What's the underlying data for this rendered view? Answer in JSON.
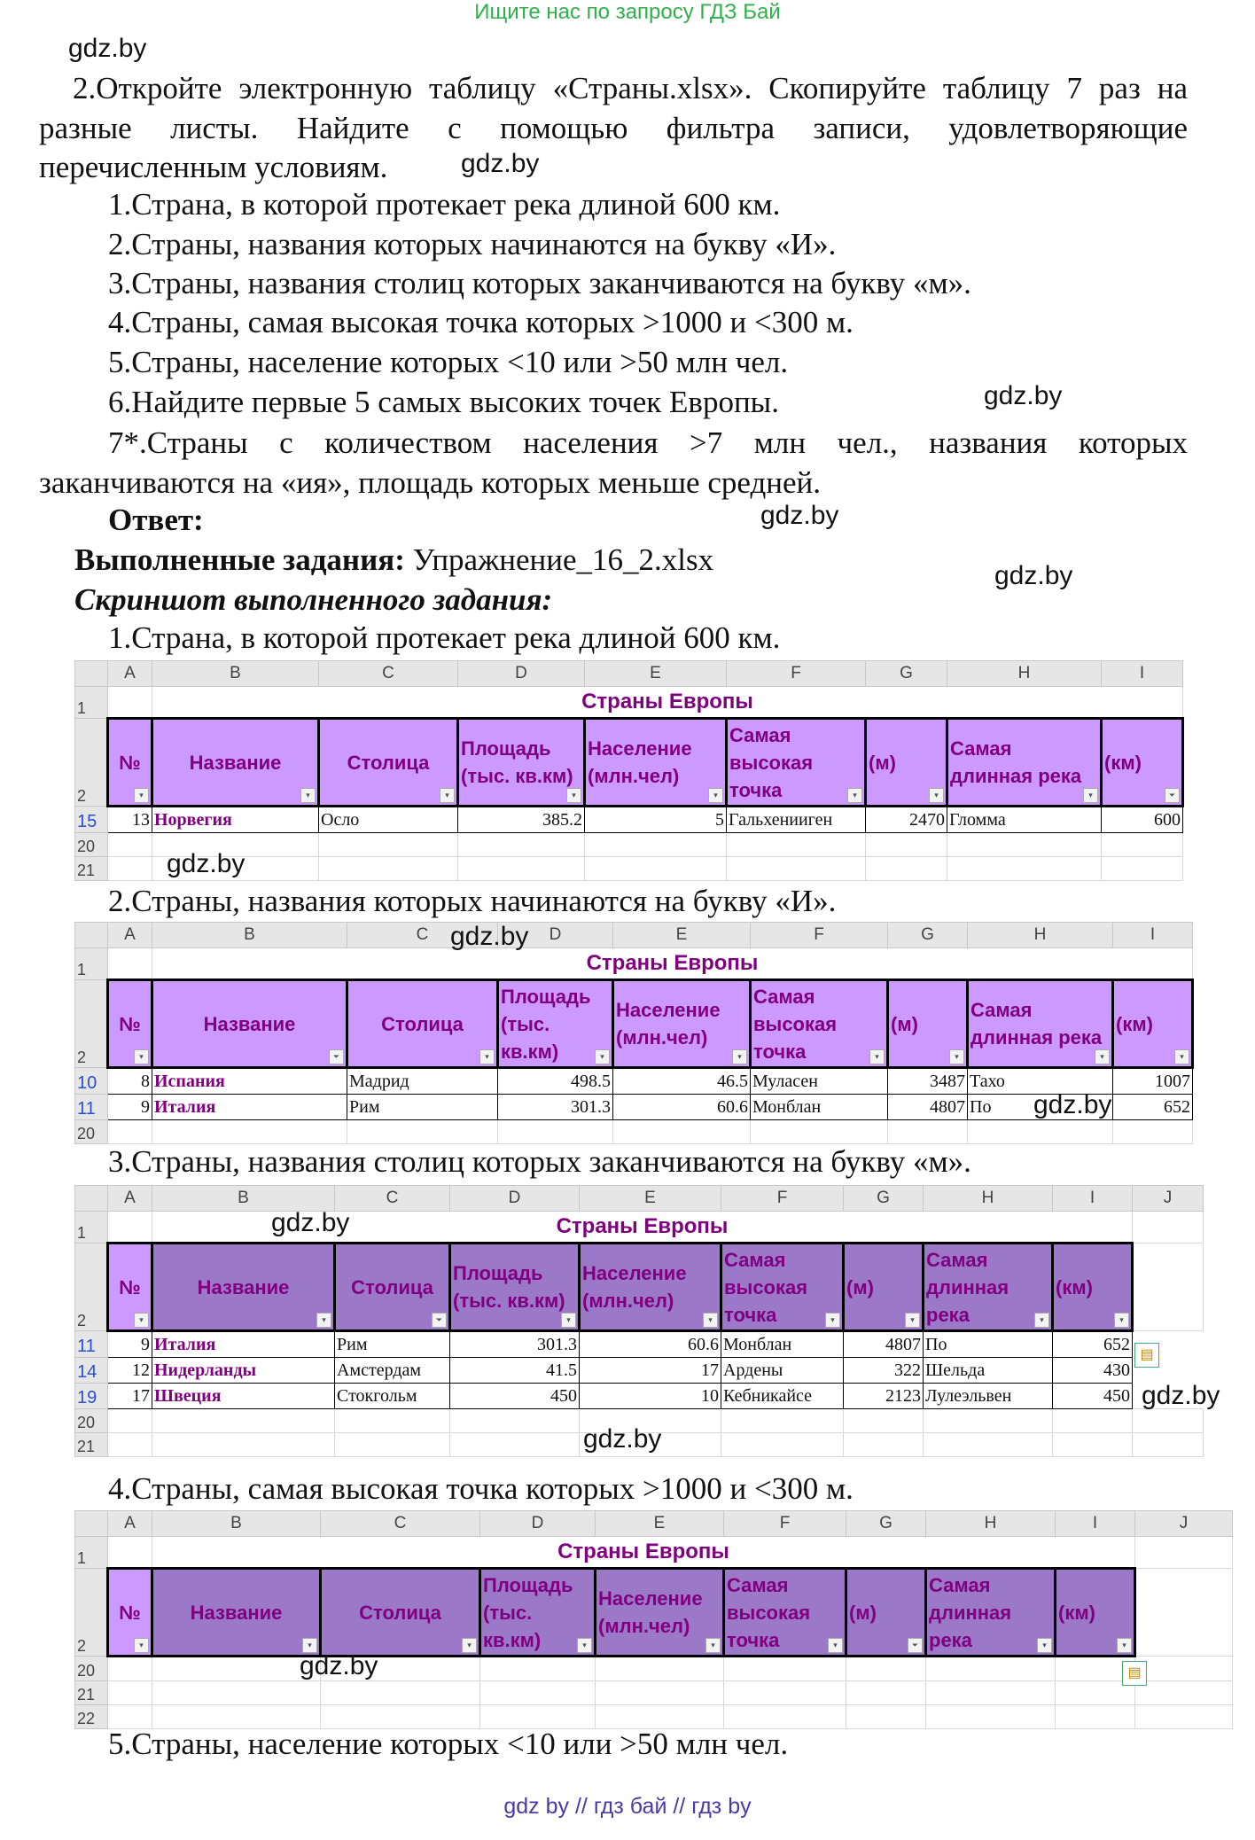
{
  "banner": "Ищите нас по запросу ГДЗ Бай",
  "watermark": "gdz.by",
  "intro": "2.Откройте электронную таблицу «Страны.xlsx». Скопируйте таблицу 7 раз на разные листы. Найдите с помощью фильтра записи, удовлетворяющие перечисленным условиям.",
  "tasks": [
    "1.Страна, в которой протекает река длиной 600 км.",
    "2.Страны, названия которых начинаются на букву «И».",
    "3.Страны, названия столиц которых заканчиваются на букву «м».",
    "4.Страны, самая высокая точка которых >1000 и <300 м.",
    "5.Страны, население которых <10 или >50 млн чел.",
    "6.Найдите первые 5 самых высоких точек Европы."
  ],
  "task7": "7*.Страны с количеством населения >7 млн чел., названия которых заканчиваются на «ия», площадь которых меньше средней.",
  "answer_label": "Ответ:",
  "done_label": "Выполненные задания:",
  "done_file": "Упражнение_16_2.xlsx",
  "screenshot_label": "Скриншот выполненного задания:",
  "sheet": {
    "title": "Страны Европы",
    "headers": [
      "№",
      "Название",
      "Столица",
      "Площадь (тыс. кв.км)",
      "Население (млн.чел)",
      "Самая высокая точка",
      "(м)",
      "Самая длинная река",
      "(км)"
    ],
    "filter_icon": "dropdown-arrow-icon",
    "active_filter_icon": "funnel-icon"
  },
  "sheets": [
    {
      "cols": [
        "A",
        "B",
        "C",
        "D",
        "E",
        "F",
        "G",
        "H",
        "I"
      ],
      "style": "light",
      "filtered_col": 8,
      "rows": [
        {
          "n": "15",
          "cells": [
            "13",
            "Норвегия",
            "Осло",
            "385.2",
            "5",
            "Гальхенииген",
            "2470",
            "Гломма",
            "600"
          ]
        }
      ],
      "empty_rows": [
        "20",
        "21"
      ]
    },
    {
      "cols": [
        "A",
        "B",
        "C",
        "D",
        "E",
        "F",
        "G",
        "H",
        "I"
      ],
      "style": "light",
      "filtered_col": 1,
      "rows": [
        {
          "n": "10",
          "cells": [
            "8",
            "Испания",
            "Мадрид",
            "498.5",
            "46.5",
            "Муласен",
            "3487",
            "Тахо",
            "1007"
          ]
        },
        {
          "n": "11",
          "cells": [
            "9",
            "Италия",
            "Рим",
            "301.3",
            "60.6",
            "Монблан",
            "4807",
            "По",
            "652"
          ]
        }
      ],
      "empty_rows": [
        "20"
      ]
    },
    {
      "cols": [
        "A",
        "B",
        "C",
        "D",
        "E",
        "F",
        "G",
        "H",
        "I",
        "J"
      ],
      "style": "dark",
      "filtered_col": 2,
      "rows": [
        {
          "n": "11",
          "cells": [
            "9",
            "Италия",
            "Рим",
            "301.3",
            "60.6",
            "Монблан",
            "4807",
            "По",
            "652"
          ]
        },
        {
          "n": "14",
          "cells": [
            "12",
            "Нидерланды",
            "Амстердам",
            "41.5",
            "17",
            "Ардены",
            "322",
            "Шельда",
            "430"
          ]
        },
        {
          "n": "19",
          "cells": [
            "17",
            "Швеция",
            "Стокгольм",
            "450",
            "10",
            "Кебникайсе",
            "2123",
            "Лулеэльвен",
            "450"
          ]
        }
      ],
      "empty_rows": [
        "20",
        "21"
      ]
    },
    {
      "cols": [
        "A",
        "B",
        "C",
        "D",
        "E",
        "F",
        "G",
        "H",
        "I",
        "J"
      ],
      "style": "dark",
      "filtered_col": 6,
      "rows": [],
      "empty_rows": [
        "20",
        "21",
        "22"
      ]
    }
  ],
  "footer": "gdz by  //  гдз бай  //  гдз by",
  "colors": {
    "header_light": "#cc99ff",
    "header_dark": "#9b78c8",
    "title": "#800080",
    "banner": "#2fb14a"
  }
}
